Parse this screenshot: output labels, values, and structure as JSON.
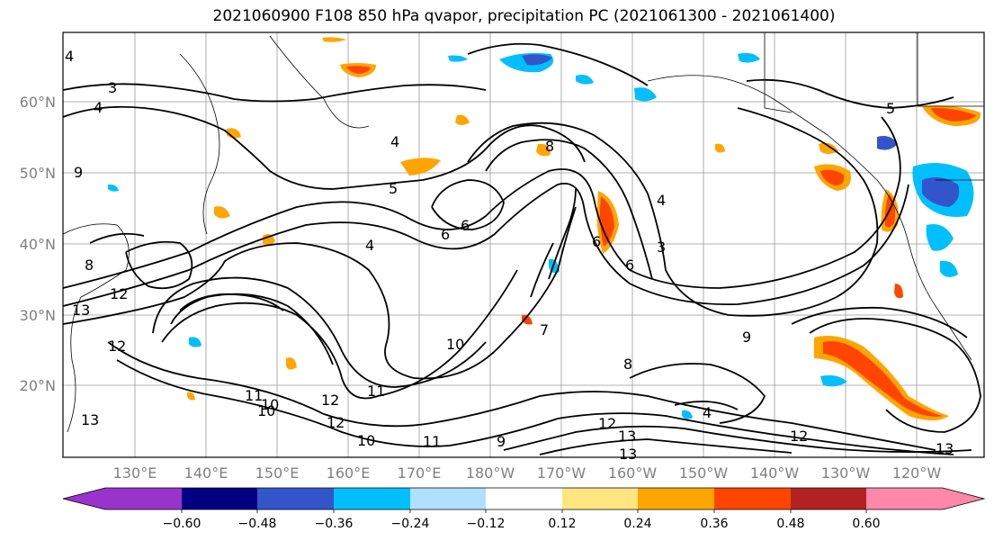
{
  "title": "2021060900 F108 850 hPa qvapor, precipitation PC (2021061300 - 2021061400)",
  "map": {
    "lat_labels": [
      "60°N",
      "50°N",
      "40°N",
      "30°N",
      "20°N"
    ],
    "lon_labels": [
      "130°E",
      "140°E",
      "150°E",
      "160°E",
      "170°E",
      "180°W",
      "170°W",
      "160°W",
      "150°W",
      "140°W",
      "130°W",
      "120°W"
    ],
    "contour_labels": [
      "4",
      "3",
      "4",
      "5",
      "4",
      "4",
      "5",
      "8",
      "6",
      "6",
      "6",
      "7",
      "4",
      "9",
      "8",
      "12",
      "13",
      "12",
      "10",
      "11",
      "12",
      "11",
      "10",
      "12",
      "10",
      "9",
      "13",
      "13",
      "12",
      "13",
      "12",
      "4",
      "3",
      "11",
      "13",
      "10",
      "9",
      "8",
      "6"
    ]
  },
  "colorbar": {
    "ticks": [
      "−0.60",
      "−0.48",
      "−0.36",
      "−0.24",
      "−0.12",
      "0.12",
      "0.24",
      "0.36",
      "0.48",
      "0.60"
    ],
    "colors": [
      "#9933cc",
      "#000080",
      "#3355cc",
      "#00bfff",
      "#b0e0ff",
      "#ffffff",
      "#ffe680",
      "#ffa500",
      "#ff4500",
      "#b22222",
      "#ff88aa"
    ]
  }
}
